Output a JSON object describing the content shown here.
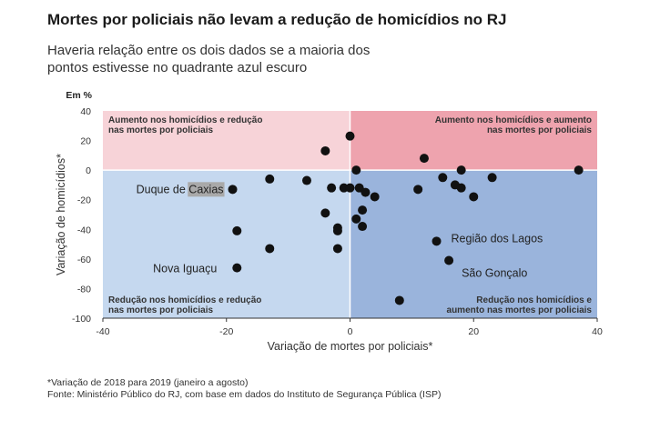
{
  "header": {
    "title": "Mortes por policiais não levam a redução de homicídios no RJ",
    "subtitle": "Haveria relação entre os dois dados se a maioria dos pontos estivesse no quadrante azul escuro"
  },
  "footer": {
    "note": "*Variação de 2018 para 2019 (janeiro a agosto)",
    "source": "Fonte: Ministério Público do RJ, com base em dados do Instituto de Segurança Pública (ISP)"
  },
  "chart_data": {
    "type": "scatter",
    "title": "Mortes por policiais não levam a redução de homicídios no RJ",
    "xlabel": "Variação de mortes por policiais*",
    "ylabel": "Variação de homicídios*",
    "unit_label": "Em %",
    "xlim": [
      -40,
      40
    ],
    "ylim": [
      -100,
      40
    ],
    "xticks": [
      -40,
      -20,
      0,
      20,
      40
    ],
    "yticks": [
      40,
      20,
      0,
      -20,
      -40,
      -60,
      -80,
      -100
    ],
    "grid": false,
    "quadrants": [
      {
        "name": "top-left",
        "label_lines": [
          "Aumento nos homicídios e redução",
          "nas mortes por policiais"
        ],
        "color": "#f7d3d8"
      },
      {
        "name": "top-right",
        "label_lines": [
          "Aumento nos homicídios e aumento",
          "nas mortes por policiais"
        ],
        "color": "#eea3ae"
      },
      {
        "name": "bottom-left",
        "label_lines": [
          "Redução nos homicídios e redução",
          "nas mortes por policiais"
        ],
        "color": "#c5d8ef"
      },
      {
        "name": "bottom-right",
        "label_lines": [
          "Redução nos homicídios e",
          "aumento nas mortes por policiais"
        ],
        "color": "#9ab4dc"
      }
    ],
    "points": [
      {
        "x": -19,
        "y": -13,
        "label": "Duque de Caxias",
        "highlight": "Caxias"
      },
      {
        "x": -18.3,
        "y": -41
      },
      {
        "x": -18.3,
        "y": -66,
        "label": "Nova Iguaçu"
      },
      {
        "x": -13,
        "y": -6
      },
      {
        "x": -13,
        "y": -53
      },
      {
        "x": -7,
        "y": -7
      },
      {
        "x": -4,
        "y": 13
      },
      {
        "x": -4,
        "y": -29
      },
      {
        "x": -3,
        "y": -12
      },
      {
        "x": -2,
        "y": -39
      },
      {
        "x": -2,
        "y": -41
      },
      {
        "x": -2,
        "y": -53
      },
      {
        "x": -1,
        "y": -12
      },
      {
        "x": 0,
        "y": -12
      },
      {
        "x": 0,
        "y": 23
      },
      {
        "x": 1,
        "y": 0
      },
      {
        "x": 1,
        "y": -33
      },
      {
        "x": 1.5,
        "y": -12
      },
      {
        "x": 2,
        "y": -27
      },
      {
        "x": 2,
        "y": -38
      },
      {
        "x": 2.5,
        "y": -15
      },
      {
        "x": 4,
        "y": -18
      },
      {
        "x": 8,
        "y": -88
      },
      {
        "x": 11,
        "y": -13
      },
      {
        "x": 12,
        "y": 8
      },
      {
        "x": 14,
        "y": -48,
        "label": "Região dos Lagos"
      },
      {
        "x": 15,
        "y": -5
      },
      {
        "x": 16,
        "y": -61,
        "label": "São Gonçalo"
      },
      {
        "x": 17,
        "y": -10
      },
      {
        "x": 18,
        "y": 0
      },
      {
        "x": 18,
        "y": -12
      },
      {
        "x": 20,
        "y": -18
      },
      {
        "x": 23,
        "y": -5
      },
      {
        "x": 37,
        "y": 0
      }
    ]
  }
}
